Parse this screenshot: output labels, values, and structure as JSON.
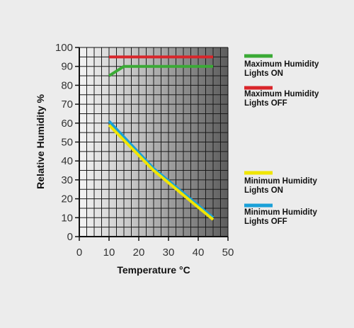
{
  "chart_data": {
    "type": "line",
    "xlabel": "Temperature °C",
    "ylabel": "Relative Humidity %",
    "xlim": [
      0,
      50
    ],
    "ylim": [
      0,
      100
    ],
    "x_ticks": [
      "0",
      "10",
      "20",
      "30",
      "40",
      "50"
    ],
    "y_ticks": [
      "0",
      "10",
      "20",
      "30",
      "40",
      "50",
      "60",
      "70",
      "80",
      "90",
      "100"
    ],
    "grid": true,
    "legend_position": "right",
    "series": [
      {
        "name_lines": [
          "Maximum Humidity",
          "Lights ON"
        ],
        "color": "#3aaa35",
        "points": [
          [
            10,
            85
          ],
          [
            15,
            90
          ],
          [
            45,
            90
          ]
        ]
      },
      {
        "name_lines": [
          "Maximum Humidity",
          "Lights OFF"
        ],
        "color": "#d9252a",
        "points": [
          [
            10,
            95
          ],
          [
            45,
            95
          ]
        ]
      },
      {
        "name_lines": [
          "Minimum Humidity",
          "Lights ON"
        ],
        "color": "#f0e500",
        "points": [
          [
            10,
            59
          ],
          [
            25,
            35
          ],
          [
            45,
            9
          ]
        ]
      },
      {
        "name_lines": [
          "Minimum Humidity",
          "Lights OFF"
        ],
        "color": "#1aa0d8",
        "points": [
          [
            10,
            61
          ],
          [
            25,
            36
          ],
          [
            45,
            10
          ]
        ]
      }
    ]
  }
}
